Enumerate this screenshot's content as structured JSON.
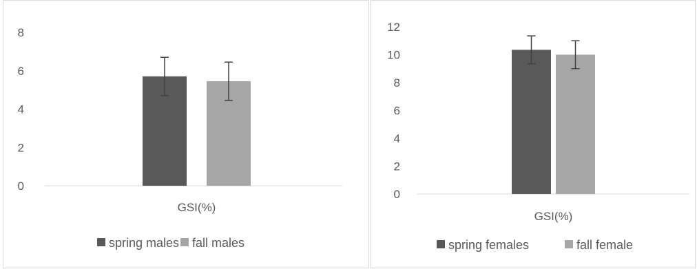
{
  "chart_data": [
    {
      "type": "bar",
      "categories": [
        "GSI(%)"
      ],
      "series": [
        {
          "name": "spring males",
          "values": [
            5.7
          ],
          "error": [
            1.0
          ],
          "color": "#595959"
        },
        {
          "name": "fall males",
          "values": [
            5.45
          ],
          "error": [
            1.0
          ],
          "color": "#a6a6a6"
        }
      ],
      "ylim": [
        0,
        8
      ],
      "yticks": [
        "0",
        "2",
        "4",
        "6",
        "8"
      ],
      "legend": "bottom",
      "grid": false
    },
    {
      "type": "bar",
      "categories": [
        "GSI(%)"
      ],
      "series": [
        {
          "name": "spring females",
          "values": [
            10.35
          ],
          "error": [
            1.0
          ],
          "color": "#595959"
        },
        {
          "name": "fall female",
          "values": [
            10.0
          ],
          "error": [
            1.0
          ],
          "color": "#a6a6a6"
        }
      ],
      "ylim": [
        0,
        12
      ],
      "yticks": [
        "0",
        "2",
        "4",
        "6",
        "8",
        "10",
        "12"
      ],
      "legend": "bottom",
      "grid": false
    }
  ]
}
